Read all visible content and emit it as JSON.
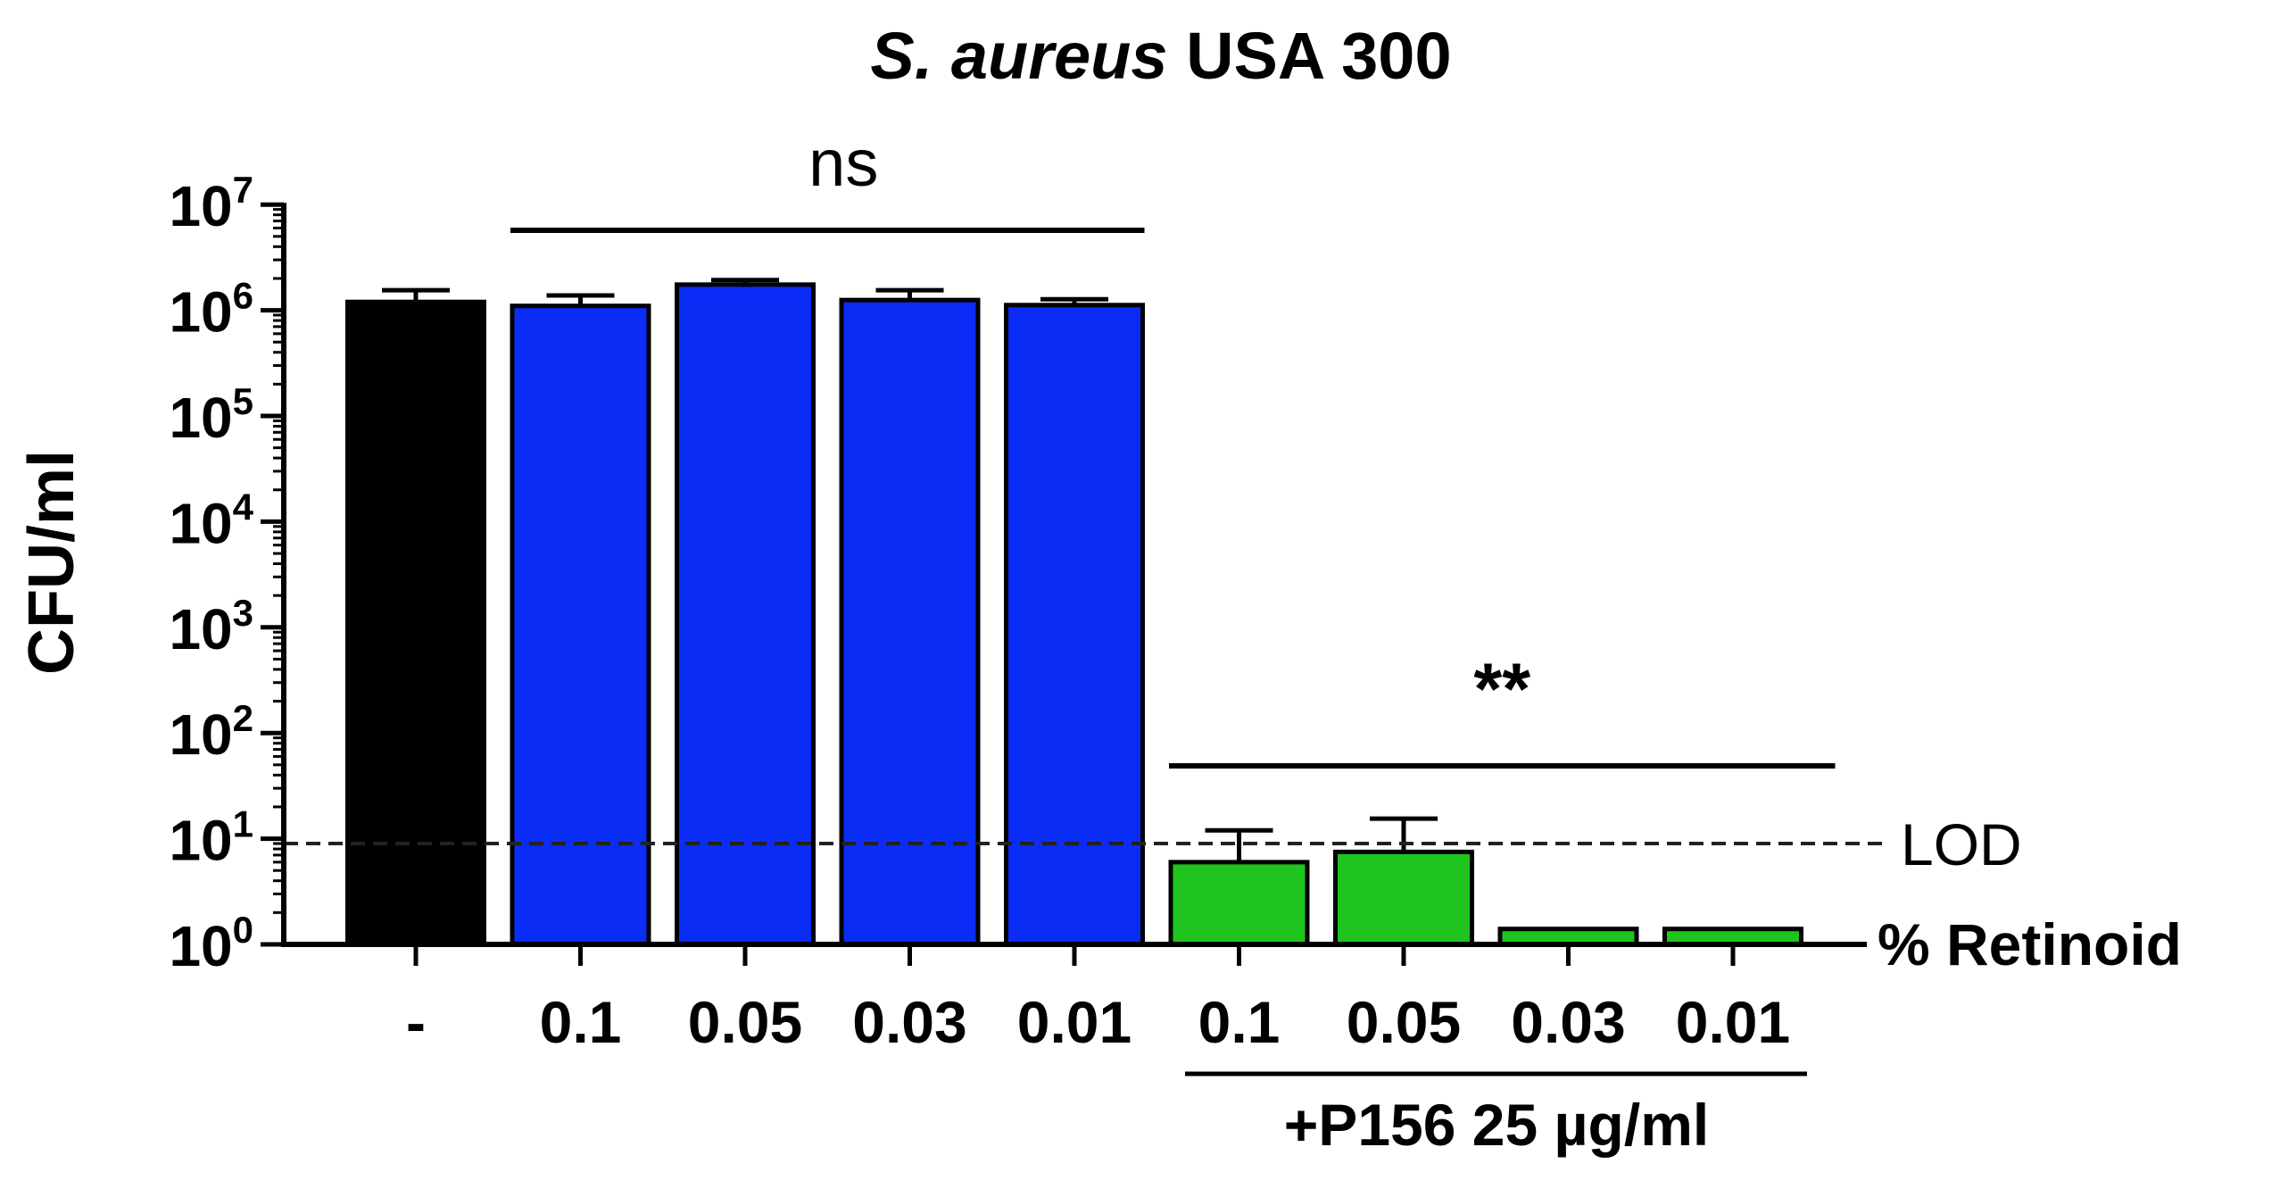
{
  "chart_data": {
    "type": "bar",
    "title_italic": "S. aureus",
    "title_rest": " USA 300",
    "ylabel": "CFU/ml",
    "y_scale": "log",
    "ylim": [
      1,
      10000000
    ],
    "y_ticks": [
      {
        "value": 1,
        "base": "10",
        "exp": "0"
      },
      {
        "value": 10,
        "base": "10",
        "exp": "1"
      },
      {
        "value": 100,
        "base": "10",
        "exp": "2"
      },
      {
        "value": 1000,
        "base": "10",
        "exp": "3"
      },
      {
        "value": 10000,
        "base": "10",
        "exp": "4"
      },
      {
        "value": 100000,
        "base": "10",
        "exp": "5"
      },
      {
        "value": 1000000,
        "base": "10",
        "exp": "6"
      },
      {
        "value": 10000000,
        "base": "10",
        "exp": "7"
      }
    ],
    "categories": [
      "-",
      "0.1",
      "0.05",
      "0.03",
      "0.01",
      "0.1",
      "0.05",
      "0.03",
      "0.01"
    ],
    "values": [
      1200000,
      1100000,
      1750000,
      1250000,
      1120000,
      6,
      7.5,
      1.4,
      1.4
    ],
    "errors": [
      350000,
      280000,
      180000,
      300000,
      150000,
      6,
      8,
      0,
      0
    ],
    "colors": [
      "#000000",
      "#0a2cf5",
      "#0a2cf5",
      "#0a2cf5",
      "#0a2cf5",
      "#1fc41f",
      "#1fc41f",
      "#1fc41f",
      "#1fc41f"
    ],
    "x_axis_label": "% Retinoid",
    "group_label": "+P156 25 µg/ml",
    "lod": {
      "value": 9,
      "label": "LOD"
    },
    "annotations": [
      {
        "text": "ns",
        "from_index": 1,
        "to_index": 4
      },
      {
        "text": "**",
        "from_index": 5,
        "to_index": 8
      }
    ]
  }
}
